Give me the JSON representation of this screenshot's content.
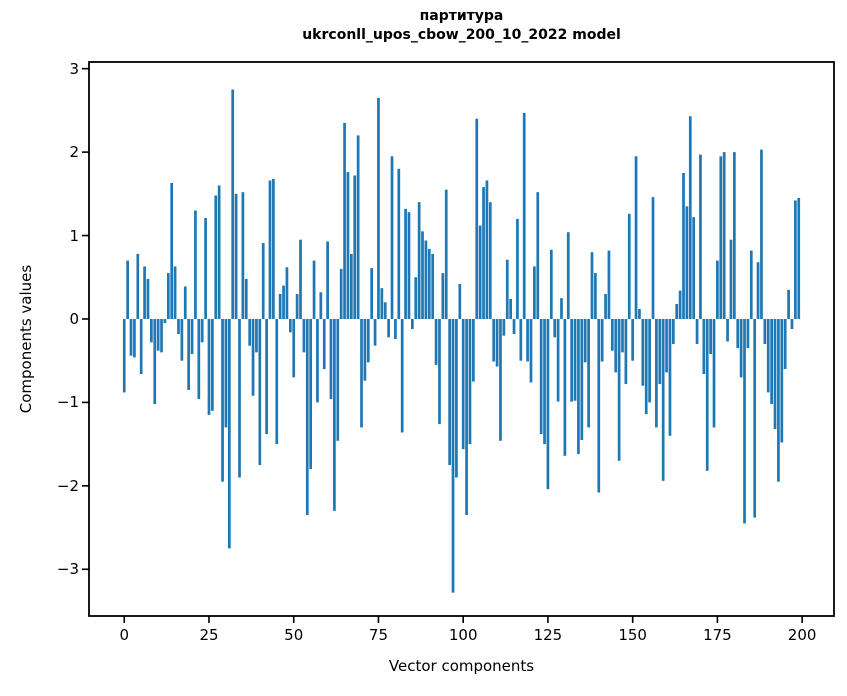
{
  "figure": {
    "title_line1": "партитура",
    "title_line2": "ukrconll_upos_cbow_200_10_2022 model",
    "xlabel": "Vector components",
    "ylabel": "Components values"
  },
  "chart_data": {
    "type": "bar",
    "title": "партитура",
    "subtitle": "ukrconll_upos_cbow_200_10_2022 model",
    "xlabel": "Vector components",
    "ylabel": "Components values",
    "bar_color": "#1f77b4",
    "axis_color": "#000000",
    "grid": false,
    "legend_position": "none",
    "n_bars": 200,
    "xlim": [
      -10.4,
      209.4
    ],
    "ylim": [
      -3.56,
      3.08
    ],
    "x_ticks": [
      0,
      25,
      50,
      75,
      100,
      125,
      150,
      175,
      200
    ],
    "y_ticks": [
      3,
      2,
      1,
      0,
      -1,
      -2,
      -3
    ],
    "y_tick_labels": [
      "3",
      "2",
      "1",
      "0",
      "−1",
      "−2",
      "−3"
    ],
    "values": [
      -0.88,
      0.7,
      -0.44,
      -0.46,
      0.78,
      -0.66,
      0.63,
      0.48,
      -0.28,
      -1.02,
      -0.38,
      -0.4,
      -0.05,
      0.55,
      1.63,
      0.63,
      -0.18,
      -0.5,
      0.39,
      -0.85,
      -0.42,
      1.3,
      -0.96,
      -0.28,
      1.21,
      -1.15,
      -1.1,
      1.48,
      1.6,
      -1.95,
      -1.3,
      -2.75,
      2.75,
      1.5,
      -1.9,
      1.52,
      0.48,
      -0.32,
      -0.92,
      -0.4,
      -1.75,
      0.91,
      -1.38,
      1.66,
      1.68,
      -1.5,
      0.3,
      0.4,
      0.62,
      -0.16,
      -0.7,
      0.3,
      0.95,
      -0.4,
      -2.35,
      -1.8,
      0.7,
      -1.0,
      0.32,
      -0.6,
      0.93,
      -0.96,
      -2.3,
      -1.46,
      0.6,
      2.35,
      1.76,
      0.78,
      1.72,
      2.2,
      -1.3,
      -0.74,
      -0.52,
      0.61,
      -0.32,
      2.65,
      0.37,
      0.2,
      -0.22,
      1.95,
      -0.24,
      1.8,
      -1.36,
      1.32,
      1.28,
      -0.12,
      0.5,
      1.4,
      1.05,
      0.94,
      0.84,
      0.78,
      -0.55,
      -1.26,
      0.55,
      1.55,
      -1.75,
      -3.28,
      -1.9,
      0.42,
      -1.56,
      -2.35,
      -1.5,
      -0.75,
      2.4,
      1.12,
      1.58,
      1.66,
      1.4,
      -0.51,
      -0.57,
      -1.46,
      -0.2,
      0.71,
      0.24,
      -0.18,
      1.2,
      -0.5,
      2.47,
      -0.51,
      -0.76,
      0.63,
      1.52,
      -1.38,
      -1.5,
      -2.04,
      0.83,
      -0.22,
      -0.99,
      0.25,
      -1.64,
      1.04,
      -0.99,
      -0.98,
      -1.62,
      -1.45,
      -0.52,
      -1.3,
      0.8,
      0.55,
      -2.08,
      -0.51,
      0.3,
      0.82,
      -0.38,
      -0.64,
      -1.7,
      -0.4,
      -0.78,
      1.26,
      -0.5,
      1.95,
      0.12,
      -0.8,
      -1.14,
      -1.0,
      1.46,
      -1.3,
      -0.78,
      -1.94,
      -0.64,
      -1.4,
      -0.3,
      0.18,
      0.34,
      1.75,
      1.35,
      2.43,
      1.22,
      -0.3,
      1.97,
      -0.66,
      -1.82,
      -0.42,
      -1.3,
      0.7,
      1.95,
      2.0,
      -0.27,
      0.95,
      2.0,
      -0.35,
      -0.7,
      -2.45,
      -0.35,
      0.82,
      -2.38,
      0.68,
      2.03,
      -0.3,
      -0.88,
      -1.02,
      -1.32,
      -1.95,
      -1.48,
      -0.6,
      0.35,
      -0.12,
      1.42,
      1.45
    ]
  }
}
